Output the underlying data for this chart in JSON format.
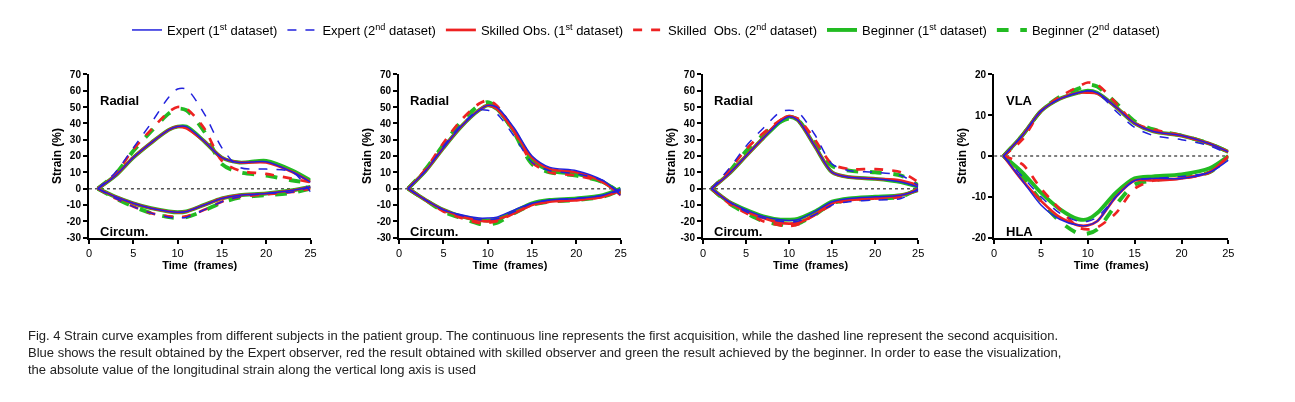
{
  "chart_data": [
    {
      "type": "line",
      "xlabel": "Time  (frames)",
      "ylabel": "Strain (%)",
      "xlim": [
        0,
        25
      ],
      "xticks": [
        0,
        5,
        10,
        15,
        20,
        25
      ],
      "ylim": [
        -30,
        70
      ],
      "yticks": [
        -30,
        -20,
        -10,
        0,
        10,
        20,
        30,
        40,
        50,
        60,
        70
      ],
      "grid": false,
      "legend": "top",
      "marker": "none",
      "annotations": [
        "Radial",
        "Circum."
      ],
      "ref_lines": [
        {
          "axis": "y",
          "value": 0,
          "color": "#555555",
          "line_style": "dotted"
        }
      ],
      "x": [
        1,
        3,
        5,
        7,
        9,
        10,
        11,
        13,
        15,
        17,
        20,
        23,
        25
      ],
      "series": [
        {
          "name": "Expert (1$^{st}$ dataset)",
          "color": "#2222dd",
          "line_style": "solid",
          "values": [
            0,
            8,
            19,
            28,
            36,
            38,
            38,
            29,
            19,
            16,
            16.5,
            10,
            4
          ]
        },
        {
          "name": "Expert (2$^{nd}$ dataset)",
          "color": "#2222dd",
          "line_style": "dashed",
          "values": [
            0,
            10,
            25,
            40,
            56,
            61,
            61,
            46,
            25,
            13,
            12,
            10,
            -2
          ]
        },
        {
          "name": "Skilled Obs. (1$^{st}$ dataset)",
          "color": "#ee2222",
          "line_style": "solid",
          "values": [
            0,
            8,
            19,
            28,
            36,
            38,
            37,
            29,
            19,
            16,
            16,
            10,
            4
          ]
        },
        {
          "name": "Skilled  Obs. (2$^{nd}$ dataset)",
          "color": "#ee2222",
          "line_style": "dashed",
          "values": [
            0,
            9,
            24,
            36,
            47,
            50,
            49,
            37,
            17,
            11,
            9,
            6,
            4
          ]
        },
        {
          "name": "Beginner (1$^{st}$ dataset)",
          "color": "#22bb22",
          "line_style": "solid",
          "values": [
            0,
            8,
            19,
            28,
            36,
            38,
            38,
            29,
            19,
            16,
            17,
            11,
            5
          ]
        },
        {
          "name": "Beginner (2$^{nd}$ dataset)",
          "color": "#22bb22",
          "line_style": "dashed",
          "values": [
            0,
            9,
            23,
            35,
            46,
            49,
            48,
            35,
            15,
            10,
            8,
            5,
            3.5
          ]
        },
        {
          "color": "#2222dd",
          "line_style": "solid",
          "values": [
            0,
            -5,
            -9,
            -12,
            -14,
            -14.5,
            -14,
            -10,
            -6,
            -4,
            -3,
            -1,
            1
          ]
        },
        {
          "color": "#2222dd",
          "line_style": "dashed",
          "values": [
            0,
            -6,
            -11,
            -15,
            -17.5,
            -18,
            -17.5,
            -13,
            -8,
            -5,
            -3,
            -2,
            1
          ]
        },
        {
          "color": "#ee2222",
          "line_style": "solid",
          "values": [
            0,
            -5,
            -9,
            -12,
            -14,
            -14.5,
            -14,
            -10,
            -6,
            -4,
            -3,
            -1,
            1
          ]
        },
        {
          "color": "#ee2222",
          "line_style": "dashed",
          "values": [
            0,
            -6,
            -11,
            -15,
            -17,
            -17.5,
            -17,
            -13,
            -8,
            -5,
            -3.5,
            -2,
            0
          ]
        },
        {
          "color": "#22bb22",
          "line_style": "solid",
          "values": [
            0,
            -5,
            -9,
            -12,
            -14,
            -14.5,
            -14,
            -10,
            -6,
            -4,
            -3,
            -1,
            1
          ]
        },
        {
          "color": "#22bb22",
          "line_style": "dashed",
          "values": [
            0,
            -6,
            -11,
            -15,
            -17.5,
            -18,
            -17.5,
            -13.5,
            -8.5,
            -5.5,
            -4,
            -2.5,
            0
          ]
        }
      ]
    },
    {
      "type": "line",
      "xlabel": "Time  (frames)",
      "ylabel": "Strain (%)",
      "xlim": [
        0,
        25
      ],
      "xticks": [
        0,
        5,
        10,
        15,
        20,
        25
      ],
      "ylim": [
        -30,
        70
      ],
      "yticks": [
        -30,
        -20,
        -10,
        0,
        10,
        20,
        30,
        40,
        50,
        60,
        70
      ],
      "grid": false,
      "marker": "none",
      "annotations": [
        "Radial",
        "Circum."
      ],
      "ref_lines": [
        {
          "axis": "y",
          "value": 0,
          "color": "#555555",
          "line_style": "dotted"
        }
      ],
      "x": [
        1,
        3,
        5,
        7,
        9,
        10,
        11,
        13,
        15,
        17,
        20,
        23,
        25
      ],
      "series": [
        {
          "color": "#2222dd",
          "line_style": "solid",
          "values": [
            0,
            11,
            25,
            38,
            48,
            51,
            50,
            37,
            20,
            13,
            11,
            5,
            -4
          ]
        },
        {
          "color": "#2222dd",
          "line_style": "dashed",
          "values": [
            0,
            11,
            26,
            39,
            48,
            48,
            46,
            32,
            16,
            11,
            9,
            5,
            -3
          ]
        },
        {
          "color": "#ee2222",
          "line_style": "solid",
          "values": [
            0,
            11,
            25,
            38,
            48,
            51,
            49,
            35,
            19,
            12,
            10,
            4,
            -4
          ]
        },
        {
          "color": "#ee2222",
          "line_style": "dashed",
          "values": [
            0,
            12,
            28,
            42,
            52,
            54,
            51,
            35,
            16,
            10,
            8,
            4,
            -3
          ]
        },
        {
          "color": "#22bb22",
          "line_style": "solid",
          "values": [
            0,
            11,
            25,
            38,
            48,
            51,
            49,
            35,
            18,
            11,
            9,
            4,
            -3
          ]
        },
        {
          "color": "#22bb22",
          "line_style": "dashed",
          "values": [
            0,
            12,
            27,
            41,
            51,
            53,
            50,
            34,
            15,
            10,
            8,
            4,
            -3
          ]
        },
        {
          "color": "#2222dd",
          "line_style": "solid",
          "values": [
            0,
            -7,
            -13,
            -16,
            -18,
            -18,
            -17.5,
            -13,
            -9,
            -7,
            -6,
            -4,
            0
          ]
        },
        {
          "color": "#2222dd",
          "line_style": "dashed",
          "values": [
            0,
            -7,
            -13,
            -16.5,
            -19,
            -19,
            -18.5,
            -14,
            -9,
            -7,
            -6,
            -4,
            -1
          ]
        },
        {
          "color": "#ee2222",
          "line_style": "solid",
          "values": [
            0,
            -7,
            -13,
            -17,
            -19.5,
            -20,
            -19,
            -15,
            -10,
            -8,
            -7,
            -5,
            -1
          ]
        },
        {
          "color": "#ee2222",
          "line_style": "dashed",
          "values": [
            0,
            -7,
            -14,
            -18,
            -21,
            -21,
            -20,
            -15,
            -10,
            -8,
            -7,
            -5,
            -1
          ]
        },
        {
          "color": "#22bb22",
          "line_style": "solid",
          "values": [
            0,
            -7,
            -13,
            -17,
            -19,
            -19.5,
            -19,
            -14,
            -9,
            -7,
            -6,
            -4,
            0
          ]
        },
        {
          "color": "#22bb22",
          "line_style": "dashed",
          "values": [
            0,
            -7,
            -14,
            -18,
            -21.5,
            -22,
            -21,
            -15,
            -10,
            -8,
            -7,
            -5,
            -1
          ]
        }
      ]
    },
    {
      "type": "line",
      "xlabel": "Time  (frames)",
      "ylabel": "Strain (%)",
      "xlim": [
        0,
        25
      ],
      "xticks": [
        0,
        5,
        10,
        15,
        20,
        25
      ],
      "ylim": [
        -30,
        70
      ],
      "yticks": [
        -30,
        -20,
        -10,
        0,
        10,
        20,
        30,
        40,
        50,
        60,
        70
      ],
      "grid": false,
      "marker": "none",
      "annotations": [
        "Radial",
        "Circum."
      ],
      "ref_lines": [
        {
          "axis": "y",
          "value": 0,
          "color": "#555555",
          "line_style": "dotted"
        }
      ],
      "x": [
        1,
        3,
        5,
        7,
        9,
        10,
        11,
        13,
        15,
        17,
        20,
        23,
        25
      ],
      "series": [
        {
          "color": "#2222dd",
          "line_style": "solid",
          "values": [
            0,
            9,
            20,
            31,
            41,
            44,
            42,
            26,
            10,
            7,
            6,
            4,
            1
          ]
        },
        {
          "color": "#2222dd",
          "line_style": "dashed",
          "values": [
            0,
            12,
            26,
            37,
            47,
            48,
            47,
            33,
            15,
            11,
            10,
            8,
            2
          ]
        },
        {
          "color": "#ee2222",
          "line_style": "solid",
          "values": [
            0,
            9,
            20,
            31,
            42,
            44.5,
            42,
            26,
            10,
            7,
            6,
            5,
            2
          ]
        },
        {
          "color": "#ee2222",
          "line_style": "dashed",
          "values": [
            0,
            11,
            24,
            34,
            42,
            44,
            43,
            30,
            15,
            12,
            12,
            10,
            4
          ]
        },
        {
          "color": "#22bb22",
          "line_style": "solid",
          "values": [
            0,
            9,
            20,
            31,
            41,
            44,
            42,
            26,
            10,
            7,
            6,
            4,
            1
          ]
        },
        {
          "color": "#22bb22",
          "line_style": "dashed",
          "values": [
            0,
            10,
            23,
            33,
            41,
            43,
            42,
            28,
            14,
            11,
            10,
            8,
            2
          ]
        },
        {
          "color": "#2222dd",
          "line_style": "solid",
          "values": [
            0,
            -8,
            -13,
            -17,
            -19,
            -19.5,
            -19,
            -14,
            -8,
            -6,
            -5,
            -4,
            -1
          ]
        },
        {
          "color": "#2222dd",
          "line_style": "dashed",
          "values": [
            0,
            -8,
            -14,
            -18,
            -20,
            -20.5,
            -20,
            -16,
            -10,
            -8,
            -7,
            -6,
            0
          ]
        },
        {
          "color": "#ee2222",
          "line_style": "solid",
          "values": [
            0,
            -8,
            -14,
            -18,
            -21,
            -21.5,
            -21,
            -16,
            -9,
            -7,
            -6,
            -4,
            -1
          ]
        },
        {
          "color": "#ee2222",
          "line_style": "dashed",
          "values": [
            0,
            -9,
            -15,
            -20,
            -22.5,
            -23,
            -22,
            -16,
            -10,
            -7,
            -6,
            -5,
            0
          ]
        },
        {
          "color": "#22bb22",
          "line_style": "solid",
          "values": [
            0,
            -8,
            -13,
            -17,
            -19,
            -19,
            -18.5,
            -14,
            -8,
            -6,
            -5,
            -4,
            -1
          ]
        },
        {
          "color": "#22bb22",
          "line_style": "dashed",
          "values": [
            0,
            -9,
            -15,
            -20,
            -22,
            -22.5,
            -21.5,
            -16,
            -9,
            -7,
            -6,
            -5,
            0
          ]
        }
      ]
    },
    {
      "type": "line",
      "xlabel": "Time  (frames)",
      "ylabel": "Strain (%)",
      "xlim": [
        0,
        25
      ],
      "xticks": [
        0,
        5,
        10,
        15,
        20,
        25
      ],
      "ylim": [
        -20,
        20
      ],
      "yticks": [
        -20,
        -10,
        0,
        10,
        20
      ],
      "grid": false,
      "marker": "none",
      "annotations": [
        "VLA",
        "HLA",
        "Fig. 4 Strain curve examples from different subjects in the patient group. The continuous line represents the first acquisition, while the dashed line represent the second acquisition. Blue shows the result obtained by the Expert observer, red the result obtained with skilled observer and green the result achieved by the beginner. In order to ease the visualization, the absolute value of the longitudinal strain along the vertical long axis is used"
      ],
      "ref_lines": [
        {
          "axis": "y",
          "value": 0,
          "color": "#555555",
          "line_style": "dotted"
        }
      ],
      "x": [
        1,
        3,
        5,
        7,
        9,
        10,
        11,
        13,
        15,
        17,
        20,
        23,
        25
      ],
      "series": [
        {
          "color": "#2222dd",
          "line_style": "solid",
          "values": [
            0,
            5,
            11,
            14,
            15.5,
            16,
            15.5,
            12,
            8,
            6,
            5,
            3,
            1
          ]
        },
        {
          "color": "#2222dd",
          "line_style": "dashed",
          "values": [
            0,
            5,
            11,
            14,
            15.5,
            16,
            15.5,
            11,
            7,
            5,
            4,
            2.5,
            0.5
          ]
        },
        {
          "color": "#ee2222",
          "line_style": "solid",
          "values": [
            0,
            5,
            11,
            14,
            15.5,
            15.5,
            15.3,
            12,
            8,
            6,
            5,
            3,
            1
          ]
        },
        {
          "color": "#ee2222",
          "line_style": "dashed",
          "values": [
            0,
            4,
            11,
            14.5,
            17,
            18,
            17.5,
            13,
            8,
            6.5,
            5,
            3,
            1
          ]
        },
        {
          "color": "#22bb22",
          "line_style": "solid",
          "values": [
            0,
            5,
            11,
            14,
            15.5,
            16,
            15.5,
            12,
            8,
            6,
            5,
            3,
            1
          ]
        },
        {
          "color": "#22bb22",
          "line_style": "dashed",
          "values": [
            0,
            5,
            11,
            14.5,
            16.5,
            17.5,
            17,
            13,
            8.5,
            6.5,
            5,
            3,
            1
          ]
        },
        {
          "color": "#2222dd",
          "line_style": "solid",
          "values": [
            0,
            -6,
            -12,
            -15.5,
            -17,
            -17,
            -16,
            -10,
            -6,
            -5.5,
            -5.5,
            -4,
            -1
          ]
        },
        {
          "color": "#2222dd",
          "line_style": "dashed",
          "values": [
            0,
            -5,
            -10,
            -14,
            -16,
            -16,
            -15,
            -10,
            -6,
            -5.5,
            -5,
            -4,
            -1
          ]
        },
        {
          "color": "#ee2222",
          "line_style": "solid",
          "values": [
            0,
            -6,
            -11,
            -15,
            -17,
            -17,
            -16,
            -10,
            -6,
            -6,
            -5.5,
            -4,
            0
          ]
        },
        {
          "color": "#ee2222",
          "line_style": "dashed",
          "values": [
            0,
            -2,
            -8,
            -13,
            -17.5,
            -18,
            -17.5,
            -14,
            -8,
            -6,
            -5.5,
            -4,
            0
          ]
        },
        {
          "color": "#22bb22",
          "line_style": "solid",
          "values": [
            0,
            -4,
            -9,
            -13,
            -15.5,
            -15.5,
            -14,
            -9,
            -5.5,
            -5,
            -4.5,
            -3,
            0
          ]
        },
        {
          "color": "#22bb22",
          "line_style": "dashed",
          "values": [
            0,
            -5,
            -11,
            -16,
            -19,
            -19,
            -18,
            -12,
            -7,
            -6,
            -5,
            -4,
            0
          ]
        }
      ]
    }
  ]
}
